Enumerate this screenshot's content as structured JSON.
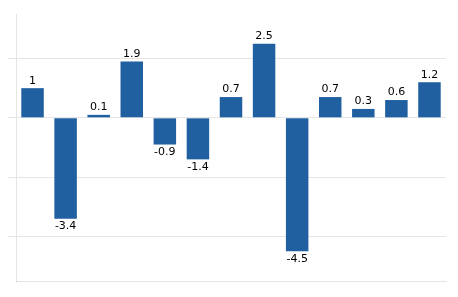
{
  "chart_data": {
    "type": "bar",
    "categories": [
      null,
      null,
      null,
      null,
      null,
      null,
      null,
      null,
      null,
      null,
      null,
      null,
      null
    ],
    "values": [
      1.0,
      -3.4,
      0.1,
      1.9,
      -0.9,
      -1.4,
      0.7,
      2.5,
      -4.5,
      0.7,
      0.3,
      0.6,
      1.2
    ],
    "color": "#2060A0",
    "ylim": [
      -5.5,
      3.5
    ],
    "yticks": [
      -4,
      -2,
      0,
      2
    ],
    "grid": true,
    "data_labels": true,
    "tick_labels": false
  }
}
